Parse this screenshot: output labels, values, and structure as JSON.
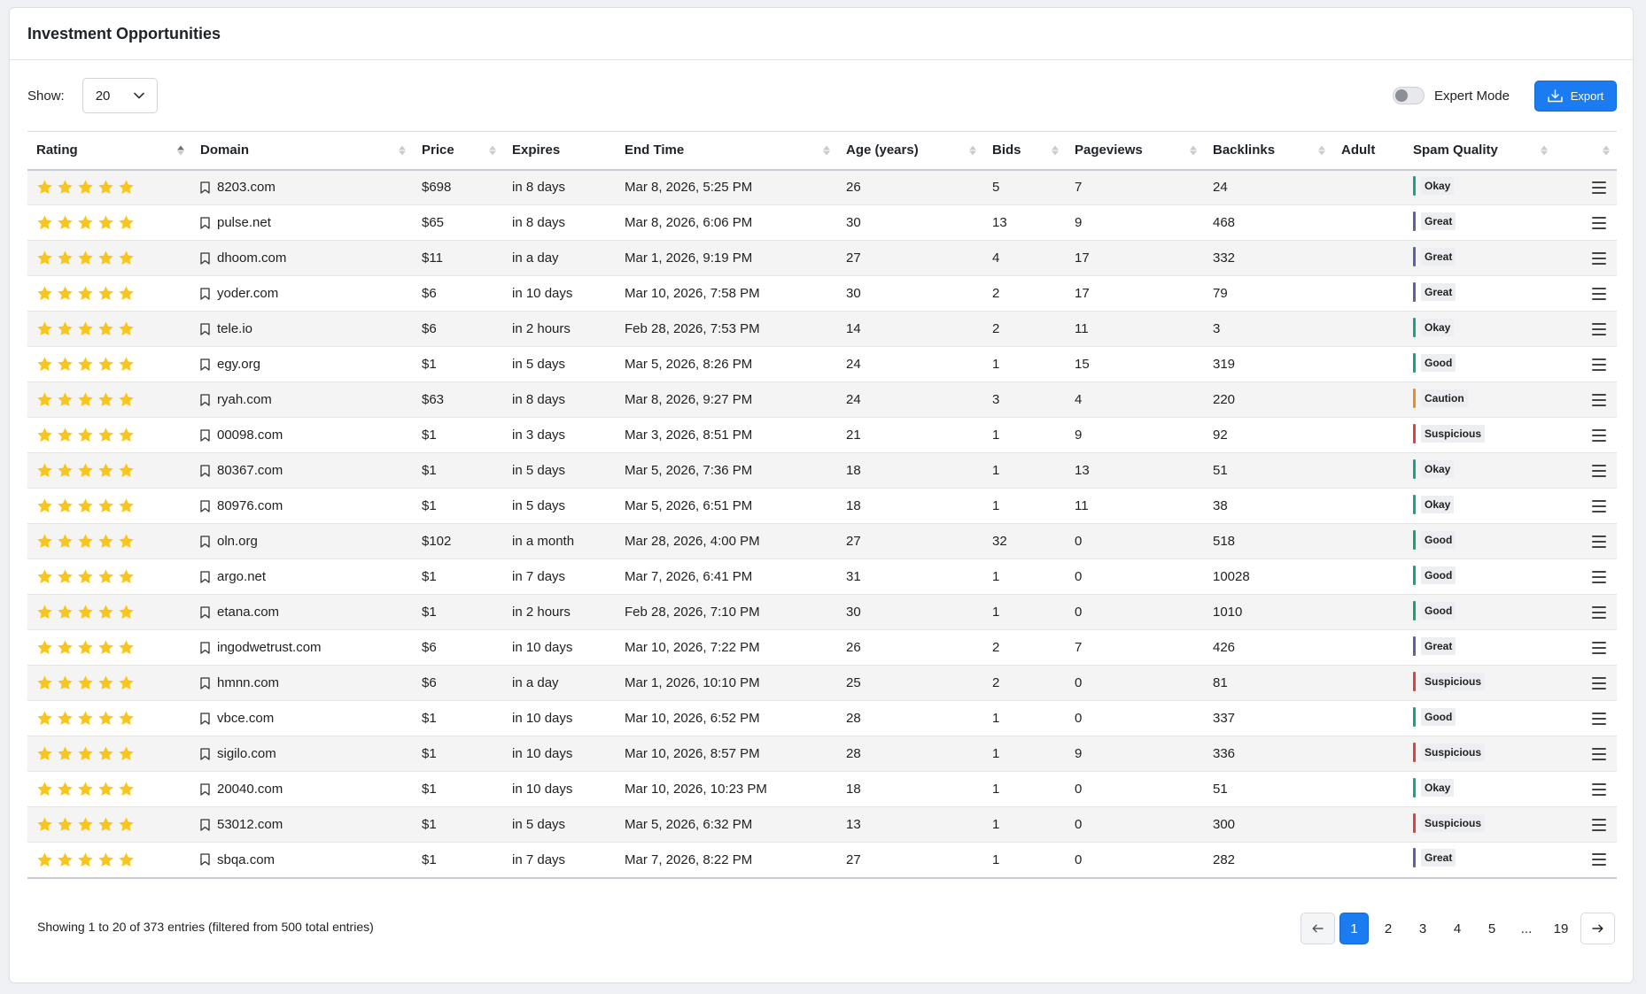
{
  "header": {
    "title": "Investment Opportunities"
  },
  "controls": {
    "show_label": "Show:",
    "page_size": "20",
    "expert_mode_label": "Expert Mode",
    "expert_mode_on": false,
    "export_label": "Export"
  },
  "columns": [
    "Rating",
    "Domain",
    "Price",
    "Expires",
    "End Time",
    "Age (years)",
    "Bids",
    "Pageviews",
    "Backlinks",
    "Adult",
    "Spam Quality"
  ],
  "spam_colors": {
    "Okay": "#1aa38a",
    "Great": "#5b5fb0",
    "Good": "#17a37a",
    "Caution": "#f08a24",
    "Suspicious": "#e53e3e"
  },
  "star_color": "#f8c51c",
  "rows": [
    {
      "rating": 5,
      "domain": "8203.com",
      "price": "$698",
      "expires": "in 8 days",
      "end_time": "Mar 8, 2026, 5:25 PM",
      "age": "26",
      "bids": "5",
      "pageviews": "7",
      "backlinks": "24",
      "adult": "",
      "spam": "Okay"
    },
    {
      "rating": 5,
      "domain": "pulse.net",
      "price": "$65",
      "expires": "in 8 days",
      "end_time": "Mar 8, 2026, 6:06 PM",
      "age": "30",
      "bids": "13",
      "pageviews": "9",
      "backlinks": "468",
      "adult": "",
      "spam": "Great"
    },
    {
      "rating": 5,
      "domain": "dhoom.com",
      "price": "$11",
      "expires": "in a day",
      "end_time": "Mar 1, 2026, 9:19 PM",
      "age": "27",
      "bids": "4",
      "pageviews": "17",
      "backlinks": "332",
      "adult": "",
      "spam": "Great"
    },
    {
      "rating": 5,
      "domain": "yoder.com",
      "price": "$6",
      "expires": "in 10 days",
      "end_time": "Mar 10, 2026, 7:58 PM",
      "age": "30",
      "bids": "2",
      "pageviews": "17",
      "backlinks": "79",
      "adult": "",
      "spam": "Great"
    },
    {
      "rating": 5,
      "domain": "tele.io",
      "price": "$6",
      "expires": "in 2 hours",
      "end_time": "Feb 28, 2026, 7:53 PM",
      "age": "14",
      "bids": "2",
      "pageviews": "11",
      "backlinks": "3",
      "adult": "",
      "spam": "Okay"
    },
    {
      "rating": 5,
      "domain": "egy.org",
      "price": "$1",
      "expires": "in 5 days",
      "end_time": "Mar 5, 2026, 8:26 PM",
      "age": "24",
      "bids": "1",
      "pageviews": "15",
      "backlinks": "319",
      "adult": "",
      "spam": "Good"
    },
    {
      "rating": 5,
      "domain": "ryah.com",
      "price": "$63",
      "expires": "in 8 days",
      "end_time": "Mar 8, 2026, 9:27 PM",
      "age": "24",
      "bids": "3",
      "pageviews": "4",
      "backlinks": "220",
      "adult": "",
      "spam": "Caution"
    },
    {
      "rating": 5,
      "domain": "00098.com",
      "price": "$1",
      "expires": "in 3 days",
      "end_time": "Mar 3, 2026, 8:51 PM",
      "age": "21",
      "bids": "1",
      "pageviews": "9",
      "backlinks": "92",
      "adult": "",
      "spam": "Suspicious"
    },
    {
      "rating": 5,
      "domain": "80367.com",
      "price": "$1",
      "expires": "in 5 days",
      "end_time": "Mar 5, 2026, 7:36 PM",
      "age": "18",
      "bids": "1",
      "pageviews": "13",
      "backlinks": "51",
      "adult": "",
      "spam": "Okay"
    },
    {
      "rating": 5,
      "domain": "80976.com",
      "price": "$1",
      "expires": "in 5 days",
      "end_time": "Mar 5, 2026, 6:51 PM",
      "age": "18",
      "bids": "1",
      "pageviews": "11",
      "backlinks": "38",
      "adult": "",
      "spam": "Okay"
    },
    {
      "rating": 5,
      "domain": "oln.org",
      "price": "$102",
      "expires": "in a month",
      "end_time": "Mar 28, 2026, 4:00 PM",
      "age": "27",
      "bids": "32",
      "pageviews": "0",
      "backlinks": "518",
      "adult": "",
      "spam": "Good"
    },
    {
      "rating": 5,
      "domain": "argo.net",
      "price": "$1",
      "expires": "in 7 days",
      "end_time": "Mar 7, 2026, 6:41 PM",
      "age": "31",
      "bids": "1",
      "pageviews": "0",
      "backlinks": "10028",
      "adult": "",
      "spam": "Good"
    },
    {
      "rating": 5,
      "domain": "etana.com",
      "price": "$1",
      "expires": "in 2 hours",
      "end_time": "Feb 28, 2026, 7:10 PM",
      "age": "30",
      "bids": "1",
      "pageviews": "0",
      "backlinks": "1010",
      "adult": "",
      "spam": "Good"
    },
    {
      "rating": 5,
      "domain": "ingodwetrust.com",
      "price": "$6",
      "expires": "in 10 days",
      "end_time": "Mar 10, 2026, 7:22 PM",
      "age": "26",
      "bids": "2",
      "pageviews": "7",
      "backlinks": "426",
      "adult": "",
      "spam": "Great"
    },
    {
      "rating": 5,
      "domain": "hmnn.com",
      "price": "$6",
      "expires": "in a day",
      "end_time": "Mar 1, 2026, 10:10 PM",
      "age": "25",
      "bids": "2",
      "pageviews": "0",
      "backlinks": "81",
      "adult": "",
      "spam": "Suspicious"
    },
    {
      "rating": 5,
      "domain": "vbce.com",
      "price": "$1",
      "expires": "in 10 days",
      "end_time": "Mar 10, 2026, 6:52 PM",
      "age": "28",
      "bids": "1",
      "pageviews": "0",
      "backlinks": "337",
      "adult": "",
      "spam": "Good"
    },
    {
      "rating": 5,
      "domain": "sigilo.com",
      "price": "$1",
      "expires": "in 10 days",
      "end_time": "Mar 10, 2026, 8:57 PM",
      "age": "28",
      "bids": "1",
      "pageviews": "9",
      "backlinks": "336",
      "adult": "",
      "spam": "Suspicious"
    },
    {
      "rating": 5,
      "domain": "20040.com",
      "price": "$1",
      "expires": "in 10 days",
      "end_time": "Mar 10, 2026, 10:23 PM",
      "age": "18",
      "bids": "1",
      "pageviews": "0",
      "backlinks": "51",
      "adult": "",
      "spam": "Okay"
    },
    {
      "rating": 5,
      "domain": "53012.com",
      "price": "$1",
      "expires": "in 5 days",
      "end_time": "Mar 5, 2026, 6:32 PM",
      "age": "13",
      "bids": "1",
      "pageviews": "0",
      "backlinks": "300",
      "adult": "",
      "spam": "Suspicious"
    },
    {
      "rating": 5,
      "domain": "sbqa.com",
      "price": "$1",
      "expires": "in 7 days",
      "end_time": "Mar 7, 2026, 8:22 PM",
      "age": "27",
      "bids": "1",
      "pageviews": "0",
      "backlinks": "282",
      "adult": "",
      "spam": "Great"
    }
  ],
  "footer": {
    "info": "Showing 1 to 20 of 373 entries (filtered from 500 total entries)",
    "pages": [
      "1",
      "2",
      "3",
      "4",
      "5",
      "...",
      "19"
    ],
    "current_page": "1"
  }
}
